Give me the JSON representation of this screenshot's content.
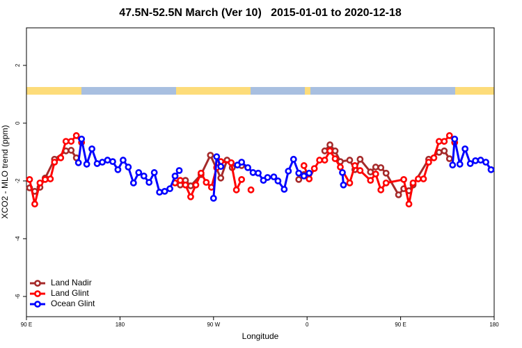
{
  "chart_data": {
    "type": "line",
    "title": "47.5N-52.5N March (Ver 10)   2015-01-01 to 2020-12-18",
    "xlabel": "Longitude",
    "ylabel": "XCO2 - MLO trend (ppm)",
    "xlim": [
      90,
      540
    ],
    "ylim": [
      -6.7,
      3.3
    ],
    "xticks": [
      {
        "value": 90,
        "label": "90 E"
      },
      180,
      {
        "value": 270,
        "label": "90 W"
      },
      {
        "value": 360,
        "label": "0"
      },
      {
        "value": 450,
        "label": "90 E"
      },
      180
    ],
    "yticks": [
      -6,
      -4,
      -2,
      0,
      2
    ],
    "legend": "bottom-left",
    "series": [
      {
        "name": "Land Nadir",
        "color": "#a52a2a",
        "x": [
          93,
          98,
          103,
          108,
          117,
          128,
          133,
          138,
          null,
          238,
          243,
          248,
          258,
          267,
          277,
          283,
          288,
          297,
          null,
          352,
          357,
          null,
          377,
          382,
          387,
          392,
          401,
          406,
          411,
          421,
          426,
          431,
          436,
          448,
          453,
          458,
          462,
          477,
          487,
          492,
          497
        ],
        "values": [
          -2.24,
          -2.36,
          -2.22,
          -1.9,
          -1.25,
          -0.96,
          -0.94,
          -1.2,
          null,
          -2.14,
          -1.98,
          -2.17,
          -1.78,
          -1.11,
          -1.9,
          -1.28,
          -1.54,
          -1.47,
          null,
          -1.95,
          -1.78,
          null,
          -0.96,
          -0.75,
          -0.96,
          -1.33,
          -1.28,
          -1.61,
          -1.25,
          -1.69,
          -1.52,
          -1.54,
          -1.73,
          -2.48,
          -2.27,
          -2.34,
          -2.14,
          -1.25,
          -1.01,
          -0.96,
          -1.23
        ]
      },
      {
        "name": "Land Glint",
        "color": "#ff0000",
        "x": [
          93,
          98,
          103,
          108,
          113,
          117,
          123,
          128,
          133,
          138,
          143,
          null,
          233,
          238,
          243,
          248,
          253,
          258,
          263,
          268,
          273,
          277,
          287,
          292,
          297,
          null,
          306,
          null,
          357,
          362,
          367,
          372,
          377,
          382,
          387,
          392,
          401,
          406,
          411,
          421,
          426,
          431,
          436,
          453,
          458,
          462,
          467,
          472,
          477,
          482,
          487,
          492,
          497,
          502
        ],
        "values": [
          -1.95,
          -2.8,
          -2.07,
          -1.95,
          -1.93,
          -1.35,
          -1.2,
          -0.63,
          -0.63,
          -0.43,
          -0.67,
          null,
          -2.07,
          -1.98,
          -2.14,
          -2.55,
          -2.14,
          -1.73,
          -2.05,
          -2.22,
          -1.54,
          -1.33,
          -1.37,
          -2.31,
          -1.95,
          null,
          -2.31,
          null,
          -1.47,
          -1.93,
          -1.57,
          -1.28,
          -1.28,
          -0.96,
          -1.23,
          -1.52,
          -2.07,
          -1.47,
          -1.64,
          -1.98,
          -1.76,
          -2.31,
          -2.07,
          -1.95,
          -2.8,
          -2.07,
          -1.93,
          -1.93,
          -1.35,
          -1.2,
          -0.63,
          -0.63,
          -0.43,
          -0.67
        ]
      },
      {
        "name": "Ocean Glint",
        "color": "#0000ff",
        "x": [
          140,
          143,
          148,
          153,
          158,
          163,
          168,
          173,
          178,
          183,
          188,
          193,
          198,
          203,
          208,
          213,
          218,
          223,
          228,
          233,
          237,
          null,
          270,
          273,
          277,
          null,
          293,
          297,
          303,
          308,
          313,
          318,
          322,
          328,
          332,
          338,
          342,
          347,
          352,
          357,
          362,
          null,
          394,
          395,
          null,
          500,
          502,
          507,
          512,
          517,
          522,
          527,
          532,
          537
        ],
        "values": [
          -1.37,
          -0.55,
          -1.42,
          -0.89,
          -1.4,
          -1.35,
          -1.28,
          -1.33,
          -1.61,
          -1.28,
          -1.52,
          -2.07,
          -1.71,
          -1.83,
          -2.05,
          -1.71,
          -2.39,
          -2.36,
          -2.27,
          -1.83,
          -1.64,
          null,
          -2.6,
          -1.16,
          -1.5,
          null,
          -1.45,
          -1.35,
          -1.54,
          -1.71,
          -1.73,
          -1.98,
          -1.88,
          -1.86,
          -2.0,
          -2.29,
          -1.66,
          -1.25,
          -1.73,
          -1.83,
          -1.73,
          null,
          -1.71,
          -2.14,
          null,
          -1.45,
          -0.55,
          -1.42,
          -0.89,
          -1.4,
          -1.3,
          -1.28,
          -1.35,
          -1.61
        ]
      }
    ]
  }
}
